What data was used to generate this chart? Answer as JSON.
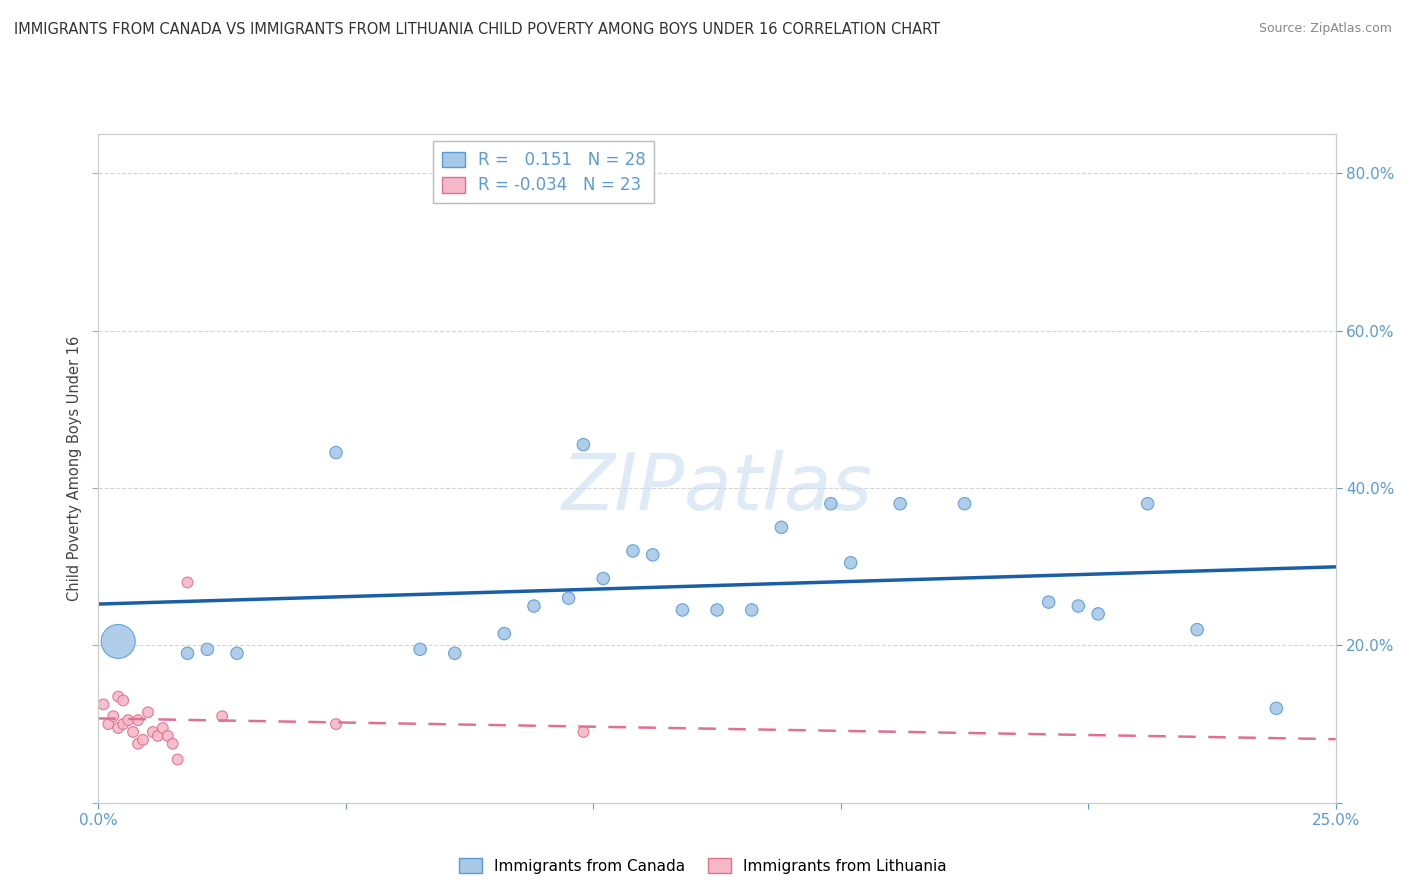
{
  "title": "IMMIGRANTS FROM CANADA VS IMMIGRANTS FROM LITHUANIA CHILD POVERTY AMONG BOYS UNDER 16 CORRELATION CHART",
  "source": "Source: ZipAtlas.com",
  "ylabel": "Child Poverty Among Boys Under 16",
  "xlim": [
    0.0,
    0.25
  ],
  "ylim": [
    0.0,
    0.85
  ],
  "canada_color": "#a8c8e8",
  "canada_edge_color": "#5b9bd5",
  "lithuania_color": "#f4b8c8",
  "lithuania_edge_color": "#e07090",
  "trend_canada_color": "#1a5fa6",
  "trend_lithuania_color": "#e07090",
  "R_canada": 0.151,
  "N_canada": 28,
  "R_lithuania": -0.034,
  "N_lithuania": 23,
  "canada_x": [
    0.004,
    0.018,
    0.022,
    0.028,
    0.048,
    0.065,
    0.072,
    0.082,
    0.088,
    0.095,
    0.098,
    0.102,
    0.108,
    0.112,
    0.118,
    0.125,
    0.132,
    0.138,
    0.148,
    0.152,
    0.162,
    0.175,
    0.192,
    0.198,
    0.202,
    0.212,
    0.222,
    0.238
  ],
  "canada_y": [
    0.205,
    0.19,
    0.195,
    0.19,
    0.445,
    0.195,
    0.19,
    0.215,
    0.25,
    0.26,
    0.455,
    0.285,
    0.32,
    0.315,
    0.245,
    0.245,
    0.245,
    0.35,
    0.38,
    0.305,
    0.38,
    0.38,
    0.255,
    0.25,
    0.24,
    0.38,
    0.22,
    0.12
  ],
  "canada_sizes": [
    600,
    80,
    80,
    80,
    80,
    80,
    80,
    80,
    80,
    80,
    80,
    80,
    80,
    80,
    80,
    80,
    80,
    80,
    80,
    80,
    80,
    80,
    80,
    80,
    80,
    80,
    80,
    80
  ],
  "lithuania_x": [
    0.001,
    0.002,
    0.003,
    0.004,
    0.004,
    0.005,
    0.005,
    0.006,
    0.007,
    0.008,
    0.008,
    0.009,
    0.01,
    0.011,
    0.012,
    0.013,
    0.014,
    0.015,
    0.016,
    0.018,
    0.025,
    0.048,
    0.098
  ],
  "lithuania_y": [
    0.125,
    0.1,
    0.11,
    0.095,
    0.135,
    0.1,
    0.13,
    0.105,
    0.09,
    0.075,
    0.105,
    0.08,
    0.115,
    0.09,
    0.085,
    0.095,
    0.085,
    0.075,
    0.055,
    0.28,
    0.11,
    0.1,
    0.09
  ],
  "lithuania_sizes": [
    60,
    60,
    60,
    60,
    60,
    60,
    60,
    60,
    60,
    60,
    60,
    60,
    60,
    60,
    60,
    60,
    60,
    60,
    60,
    60,
    60,
    60,
    60
  ],
  "watermark": "ZIPatlas",
  "background_color": "#ffffff",
  "grid_color": "#d5d5d5"
}
